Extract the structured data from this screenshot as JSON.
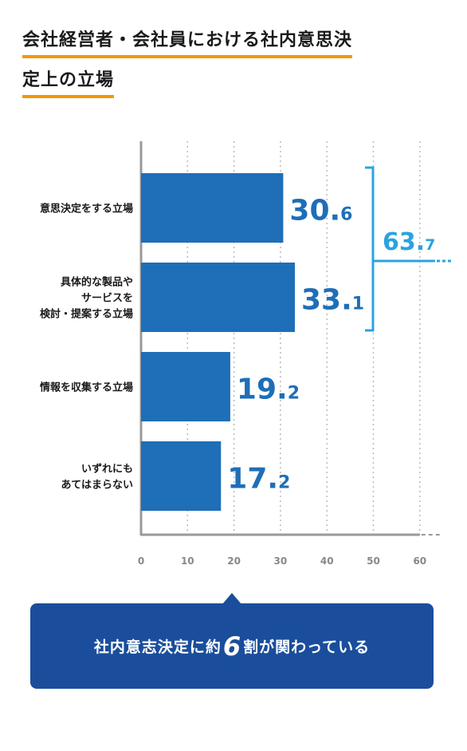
{
  "title": {
    "line1": "会社経営者・会社員における社内意思決",
    "line2": "定上の立場"
  },
  "chart_data": {
    "type": "bar",
    "orientation": "horizontal",
    "categories": [
      [
        "意思決定をする立場"
      ],
      [
        "具体的な製品や",
        "サービスを",
        "検討・提案する立場"
      ],
      [
        "情報を収集する立場"
      ],
      [
        "いずれにも",
        "あてはまらない"
      ]
    ],
    "values": [
      30.6,
      33.1,
      19.2,
      17.2
    ],
    "value_labels": [
      {
        "int": "30.",
        "dec": "6"
      },
      {
        "int": "33.",
        "dec": "1"
      },
      {
        "int": "19.",
        "dec": "2"
      },
      {
        "int": "17.",
        "dec": "2"
      }
    ],
    "xlim": [
      0,
      60
    ],
    "xticks": [
      "0",
      "10",
      "20",
      "30",
      "40",
      "50",
      "60"
    ],
    "grid": "vertical dotted",
    "bracket": {
      "covers": [
        0,
        1
      ],
      "int": "63.",
      "dec": "7"
    },
    "colors": {
      "bar": "#1e6eb8",
      "value_text": "#1e6eb8",
      "bracket": "#2aa3e0",
      "axis": "#999999",
      "grid": "#bbbbbb",
      "tick_text": "#888888"
    }
  },
  "callout": {
    "prefix": "社内意志決定に約",
    "number": "6",
    "suffix": "割が関わっている"
  }
}
